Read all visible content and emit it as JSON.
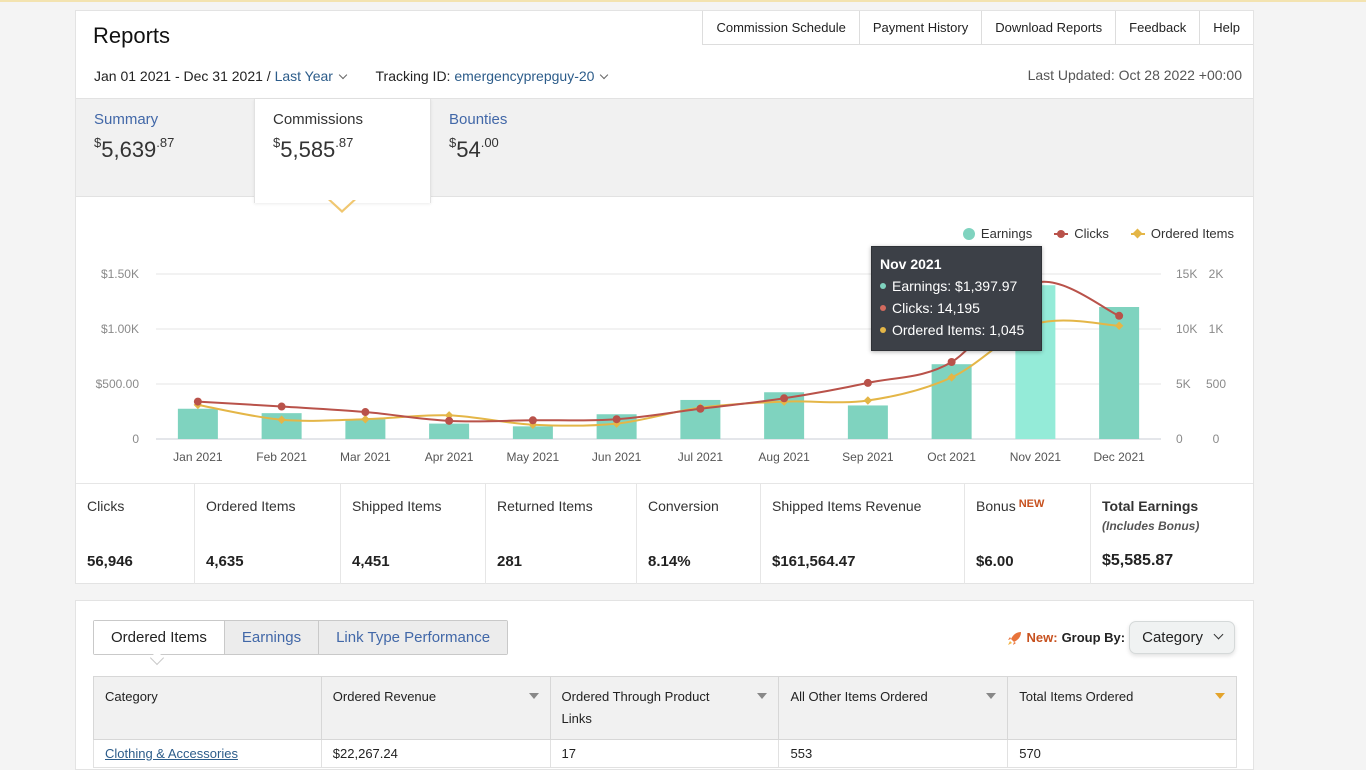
{
  "header": {
    "title": "Reports",
    "links": [
      "Commission Schedule",
      "Payment History",
      "Download Reports",
      "Feedback",
      "Help"
    ]
  },
  "filters": {
    "date_range": "Jan 01 2021 - Dec 31 2021 /",
    "period": "Last Year",
    "tracking_label": "Tracking ID:",
    "tracking_id": "emergencyprepguy-20",
    "last_updated": "Last Updated: Oct 28 2022 +00:00"
  },
  "summary_tabs": [
    {
      "label": "Summary",
      "currency": "$",
      "whole": "5,639",
      "cents": ".87"
    },
    {
      "label": "Commissions",
      "currency": "$",
      "whole": "5,585",
      "cents": ".87"
    },
    {
      "label": "Bounties",
      "currency": "$",
      "whole": "54",
      "cents": ".00"
    }
  ],
  "chart_data": {
    "type": "bar",
    "categories": [
      "Jan 2021",
      "Feb 2021",
      "Mar 2021",
      "Apr 2021",
      "May 2021",
      "Jun 2021",
      "Jul 2021",
      "Aug 2021",
      "Sep 2021",
      "Oct 2021",
      "Nov 2021",
      "Dec 2021"
    ],
    "series": [
      {
        "name": "Earnings",
        "type": "bar",
        "axis": "left",
        "color": "#7fd3bf",
        "values": [
          275,
          235,
          180,
          140,
          115,
          225,
          355,
          425,
          305,
          680,
          1397.97,
          1200
        ]
      },
      {
        "name": "Clicks",
        "type": "line",
        "axis": "right1",
        "color": "#b9524a",
        "values": [
          3400,
          2950,
          2450,
          1650,
          1700,
          1800,
          2750,
          3700,
          5100,
          7000,
          14195,
          11200
        ]
      },
      {
        "name": "Ordered Items",
        "type": "line",
        "axis": "right2",
        "color": "#e4b647",
        "values": [
          310,
          175,
          180,
          215,
          130,
          140,
          285,
          340,
          350,
          560,
          1045,
          1030
        ]
      }
    ],
    "left_axis": {
      "ticks": [
        "0",
        "$500.00",
        "$1.00K",
        "$1.50K"
      ],
      "max": 1500
    },
    "right_axis1": {
      "ticks": [
        "0",
        "5K",
        "10K",
        "15K"
      ],
      "max": 15000
    },
    "right_axis2": {
      "ticks": [
        "0",
        "500",
        "1K",
        "2K"
      ],
      "max": 1500
    },
    "highlight_index": 10,
    "grid": true,
    "legend": "top-right"
  },
  "tooltip": {
    "title": "Nov 2021",
    "rows": [
      "Earnings: $1,397.97",
      "Clicks: 14,195",
      "Ordered Items: 1,045"
    ]
  },
  "stats": [
    {
      "label": "Clicks",
      "value": "56,946"
    },
    {
      "label": "Ordered Items",
      "value": "4,635"
    },
    {
      "label": "Shipped Items",
      "value": "4,451"
    },
    {
      "label": "Returned Items",
      "value": "281"
    },
    {
      "label": "Conversion",
      "value": "8.14%"
    },
    {
      "label": "Shipped Items Revenue",
      "value": "$161,564.47"
    },
    {
      "label": "Bonus",
      "badge": "NEW",
      "value": "$6.00"
    },
    {
      "label": "Total Earnings",
      "sub": "(Includes Bonus)",
      "value": "$5,585.87"
    }
  ],
  "bottom": {
    "tabs": [
      "Ordered Items",
      "Earnings",
      "Link Type Performance"
    ],
    "new_label": "New:",
    "group_by_label": "Group By:",
    "group_by_value": "Category",
    "columns": [
      "Category",
      "Ordered Revenue",
      "Ordered Through Product Links",
      "All Other Items Ordered",
      "Total Items Ordered"
    ],
    "rows": [
      [
        "Clothing & Accessories",
        "$22,267.24",
        "17",
        "553",
        "570"
      ]
    ]
  },
  "colors": {
    "earnings": "#7fd3bf",
    "earnings_highlight": "#94ebd8",
    "clicks": "#b9524a",
    "ordered": "#e4b647",
    "link": "#4268a8",
    "new": "#c7511f"
  }
}
